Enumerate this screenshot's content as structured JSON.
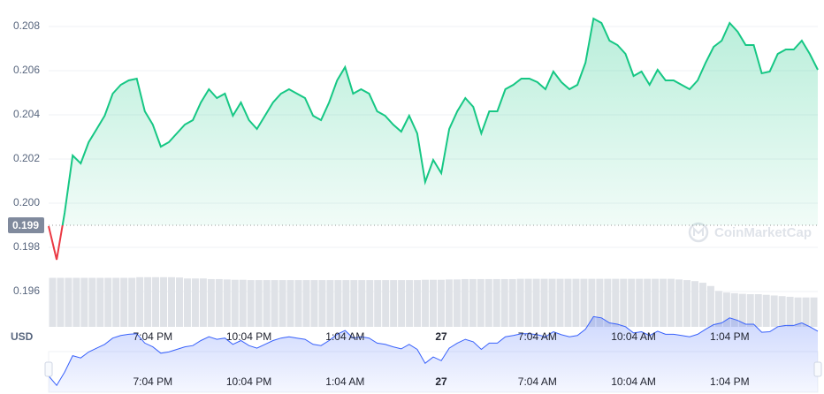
{
  "chart_data": {
    "type": "line",
    "categories": [
      null,
      null,
      null,
      null,
      null,
      null,
      null,
      null,
      null,
      null,
      null,
      null,
      null,
      "7:04 PM",
      null,
      null,
      null,
      null,
      null,
      null,
      null,
      null,
      null,
      null,
      null,
      "10:04 PM",
      null,
      null,
      null,
      null,
      null,
      null,
      null,
      null,
      null,
      null,
      null,
      "1:04 AM",
      null,
      null,
      null,
      null,
      null,
      null,
      null,
      null,
      null,
      null,
      null,
      "27",
      null,
      null,
      null,
      null,
      null,
      null,
      null,
      null,
      null,
      null,
      null,
      "7:04 AM",
      null,
      null,
      null,
      null,
      null,
      null,
      null,
      null,
      null,
      null,
      null,
      "10:04 AM",
      null,
      null,
      null,
      null,
      null,
      null,
      null,
      null,
      null,
      null,
      null,
      "1:04 PM",
      null,
      null,
      null,
      null,
      null,
      null,
      null,
      null,
      null,
      null,
      null
    ],
    "series": [
      {
        "color": "#16c784",
        "values": [
          0.19896,
          0.19744,
          0.19956,
          0.20216,
          0.2018,
          0.20276,
          0.20336,
          0.20396,
          0.20496,
          0.20536,
          0.20556,
          0.20564,
          0.20416,
          0.20356,
          0.20256,
          0.20276,
          0.20316,
          0.20356,
          0.20376,
          0.20456,
          0.20516,
          0.20476,
          0.20496,
          0.20396,
          0.20456,
          0.20376,
          0.20336,
          0.20396,
          0.20456,
          0.20496,
          0.20516,
          0.20496,
          0.20476,
          0.20396,
          0.20376,
          0.20456,
          0.20556,
          0.20616,
          0.20496,
          0.20516,
          0.20496,
          0.20416,
          0.20396,
          0.20356,
          0.20324,
          0.20396,
          0.20316,
          0.20096,
          0.20196,
          0.20136,
          0.20336,
          0.20416,
          0.20476,
          0.20436,
          0.20316,
          0.20416,
          0.20416,
          0.20516,
          0.20536,
          0.20564,
          0.20564,
          0.20548,
          0.20516,
          0.20596,
          0.20548,
          0.20516,
          0.20536,
          0.20636,
          0.20836,
          0.20816,
          0.20736,
          0.20716,
          0.20676,
          0.20576,
          0.20596,
          0.20536,
          0.20604,
          0.20556,
          0.20556,
          0.20536,
          0.20516,
          0.20556,
          0.20636,
          0.20708,
          0.20736,
          0.20816,
          0.20776,
          0.20716,
          0.20716,
          0.20588,
          0.20596,
          0.20676,
          0.20696,
          0.20696,
          0.20736,
          0.20676,
          0.20604
        ]
      }
    ],
    "below_color": "#ea3943",
    "baseline": {
      "value": 0.199,
      "label": "0.199"
    },
    "ylim": [
      0.1944,
      0.2092
    ],
    "yticks": [
      0.196,
      0.198,
      {
        "value": 0.2,
        "label": "0.200"
      },
      0.202,
      0.204,
      0.206,
      0.208
    ],
    "grid": true,
    "unit_label": "USD",
    "watermark": "CoinMarketCap",
    "volume": {
      "color": "#dfe2e7",
      "ylim": [
        0,
        100
      ],
      "values": [
        15,
        15,
        15,
        15,
        15,
        15,
        15,
        15,
        15,
        15,
        15,
        15.2,
        15.2,
        15.2,
        15.2,
        15.2,
        15.1,
        14.8,
        14.8,
        14.8,
        14.6,
        14.6,
        14.5,
        14.4,
        14.4,
        14.3,
        14.3,
        14.3,
        14.3,
        14.3,
        14.3,
        14.3,
        14.3,
        14.3,
        14.3,
        14.3,
        14.3,
        14.3,
        14.3,
        14.3,
        14.3,
        14.3,
        14.3,
        14.3,
        14.3,
        14.3,
        14.3,
        14.4,
        14.4,
        14.4,
        14.5,
        14.5,
        14.6,
        14.6,
        14.6,
        14.6,
        14.6,
        14.6,
        14.6,
        14.7,
        14.7,
        14.7,
        14.7,
        14.7,
        14.7,
        14.7,
        14.7,
        14.7,
        14.7,
        14.7,
        14.7,
        14.7,
        14.7,
        14.7,
        14.7,
        14.7,
        14.7,
        14.7,
        14.7,
        14.5,
        14.3,
        14,
        13.5,
        12.5,
        11,
        10.5,
        10.3,
        10.1,
        10,
        10,
        9.8,
        9.6,
        9.4,
        9.2,
        9,
        9,
        9
      ]
    }
  }
}
